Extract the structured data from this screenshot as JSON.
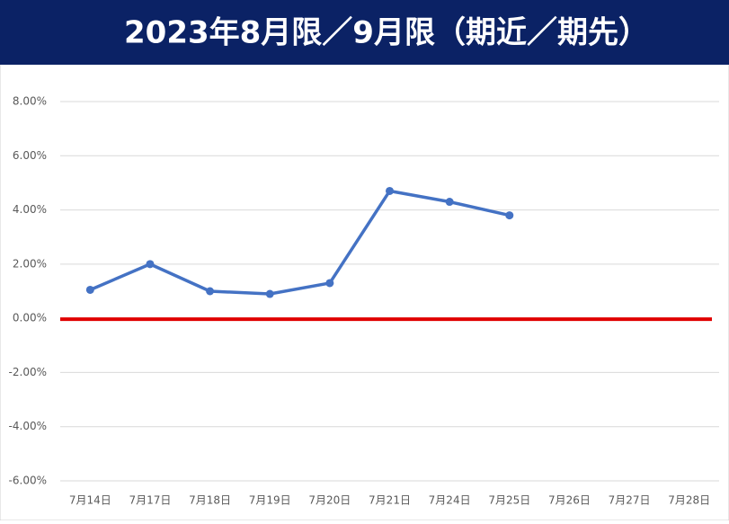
{
  "chart_data": {
    "type": "line",
    "title": "2023年8月限／9月限（期近／期先）",
    "categories": [
      "7月14日",
      "7月17日",
      "7月18日",
      "7月19日",
      "7月20日",
      "7月21日",
      "7月24日",
      "7月25日",
      "7月26日",
      "7月27日",
      "7月28日"
    ],
    "series": [
      {
        "color": "#4472c4",
        "values": [
          1.05,
          2.0,
          1.0,
          0.9,
          1.3,
          4.7,
          4.3,
          3.8,
          null,
          null,
          null
        ]
      }
    ],
    "ylim": [
      -6,
      8
    ],
    "yticks": [
      {
        "value": -6,
        "label": "-6.00%"
      },
      {
        "value": -4,
        "label": "-4.00%"
      },
      {
        "value": -2,
        "label": "-2.00%"
      },
      {
        "value": 0,
        "label": "0.00%"
      },
      {
        "value": 2,
        "label": "2.00%"
      },
      {
        "value": 4,
        "label": "4.00%"
      },
      {
        "value": 6,
        "label": "6.00%"
      },
      {
        "value": 8,
        "label": "8.00%"
      }
    ],
    "grid": true,
    "zero_line_color": "#e00000"
  }
}
